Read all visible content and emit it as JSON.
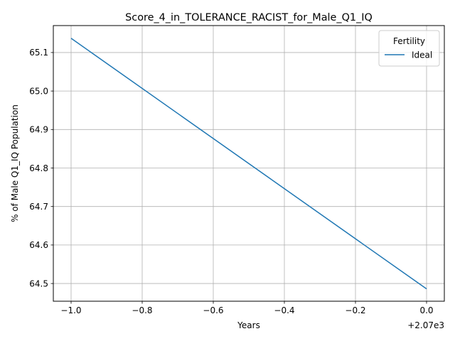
{
  "chart_data": {
    "type": "line",
    "title": "Score_4_in_TOLERANCE_RACIST_for_Male_Q1_IQ",
    "xlabel": "Years",
    "ylabel": "% of Male Q1_IQ Population",
    "x_offset_label": "+2.07e3",
    "x_ticks": [
      -1.0,
      -0.8,
      -0.6,
      -0.4,
      -0.2,
      0.0
    ],
    "x_tick_labels": [
      "−1.0",
      "−0.8",
      "−0.6",
      "−0.4",
      "−0.2",
      "0.0"
    ],
    "y_ticks": [
      64.5,
      64.6,
      64.7,
      64.8,
      64.9,
      65.0,
      65.1
    ],
    "y_tick_labels": [
      "64.5",
      "64.6",
      "64.7",
      "64.8",
      "64.9",
      "65.0",
      "65.1"
    ],
    "xlim": [
      -1.05,
      0.05
    ],
    "ylim": [
      64.454,
      65.17
    ],
    "grid": true,
    "legend": {
      "title": "Fertility",
      "placement": "top-right"
    },
    "series": [
      {
        "name": "Ideal",
        "color": "#1f77b4",
        "x": [
          -1.0,
          0.0
        ],
        "y": [
          65.137,
          64.486
        ]
      }
    ]
  }
}
